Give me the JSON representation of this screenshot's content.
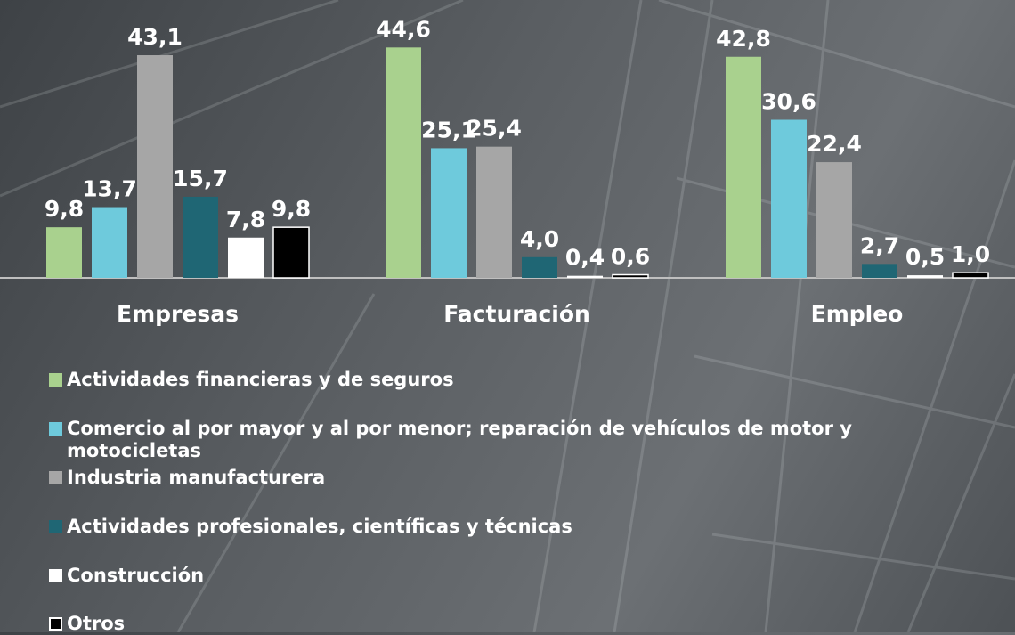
{
  "chart_data": {
    "type": "bar",
    "categories": [
      "Empresas",
      "Facturación",
      "Empleo"
    ],
    "series": [
      {
        "name": "Actividades financieras y de seguros",
        "color": "#a9d18e",
        "values": [
          9.8,
          44.6,
          42.8
        ],
        "value_labels": [
          "9,8",
          "44,6",
          "42,8"
        ]
      },
      {
        "name": "Comercio al por mayor y al por menor; reparación de vehículos de motor y motocicletas",
        "color": "#6ecadc",
        "values": [
          13.7,
          25.1,
          30.6
        ],
        "value_labels": [
          "13,7",
          "25,1",
          "30,6"
        ]
      },
      {
        "name": "Industria manufacturera",
        "color": "#a6a6a6",
        "values": [
          43.1,
          25.4,
          22.4
        ],
        "value_labels": [
          "43,1",
          "25,4",
          "22,4"
        ]
      },
      {
        "name": "Actividades profesionales, científicas y técnicas",
        "color": "#1f6674",
        "values": [
          15.7,
          4.0,
          2.7
        ],
        "value_labels": [
          "15,7",
          "4,0",
          "2,7"
        ]
      },
      {
        "name": "Construcción",
        "color": "#ffffff",
        "values": [
          7.8,
          0.4,
          0.5
        ],
        "value_labels": [
          "7,8",
          "0,4",
          "0,5"
        ]
      },
      {
        "name": "Otros",
        "color": "#000000",
        "values": [
          9.8,
          0.6,
          1.0
        ],
        "value_labels": [
          "9,8",
          "0,6",
          "1,0"
        ]
      }
    ]
  }
}
